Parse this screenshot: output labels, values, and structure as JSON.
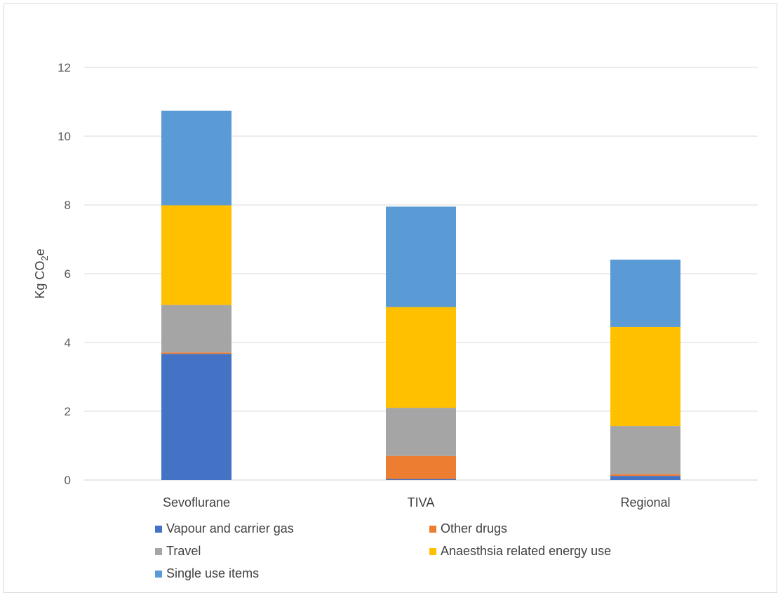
{
  "chart_data": {
    "type": "bar",
    "stacked": true,
    "ylabel_parts": [
      "Kg CO",
      "2",
      "e"
    ],
    "ylim": [
      0,
      12
    ],
    "yticks": [
      0,
      2,
      4,
      6,
      8,
      10,
      12
    ],
    "categories": [
      "Sevoflurane",
      "TIVA",
      "Regional"
    ],
    "grid": true,
    "legend_position": "bottom",
    "series": [
      {
        "name": "Vapour and carrier gas",
        "color": "#4472C4",
        "values": [
          3.67,
          0.03,
          0.12
        ]
      },
      {
        "name": "Other drugs",
        "color": "#ED7D31",
        "values": [
          0.04,
          0.67,
          0.05
        ]
      },
      {
        "name": "Travel",
        "color": "#A5A5A5",
        "values": [
          1.38,
          1.4,
          1.4
        ]
      },
      {
        "name": "Anaesthsia related energy use",
        "color": "#FFC000",
        "values": [
          2.9,
          2.93,
          2.88
        ]
      },
      {
        "name": "Single use items",
        "color": "#5B9BD5",
        "values": [
          2.75,
          2.92,
          1.96
        ]
      }
    ]
  }
}
